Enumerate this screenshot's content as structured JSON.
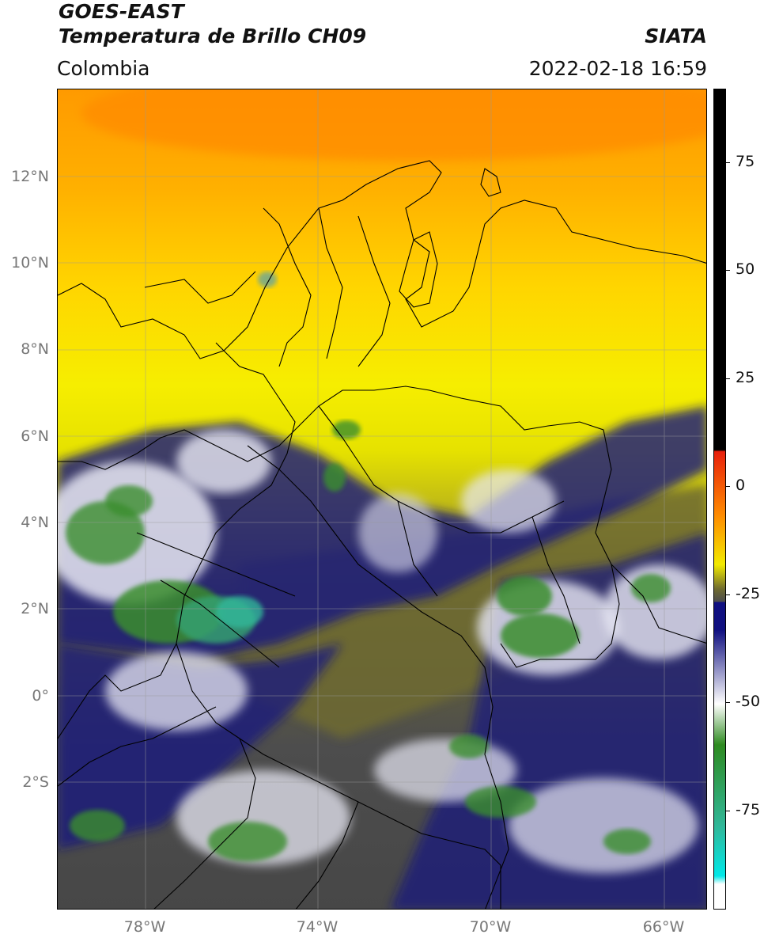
{
  "header": {
    "satellite": "GOES-EAST",
    "product": "Temperatura de Brillo CH09",
    "region": "Colombia",
    "organization": "SIATA",
    "datetime": "2022-02-18 16:59"
  },
  "map": {
    "lat_ticks": [
      "12°N",
      "10°N",
      "8°N",
      "6°N",
      "4°N",
      "2°N",
      "0°",
      "2°S"
    ],
    "lon_ticks": [
      "78°W",
      "74°W",
      "70°W",
      "66°W"
    ]
  },
  "colorbar": {
    "ticks": [
      "75",
      "50",
      "25",
      "0",
      "-25",
      "-50",
      "-75"
    ],
    "colors": {
      "black": "#000000",
      "red": "#e8200c",
      "orange": "#ff8c00",
      "yellow": "#f2ea00",
      "olive": "#6e6a30",
      "gray": "#4d4d4d",
      "navy": "#101080",
      "white": "#ffffff",
      "green": "#2e8a20",
      "teal": "#30b89a",
      "cyan": "#00e8e8"
    }
  }
}
